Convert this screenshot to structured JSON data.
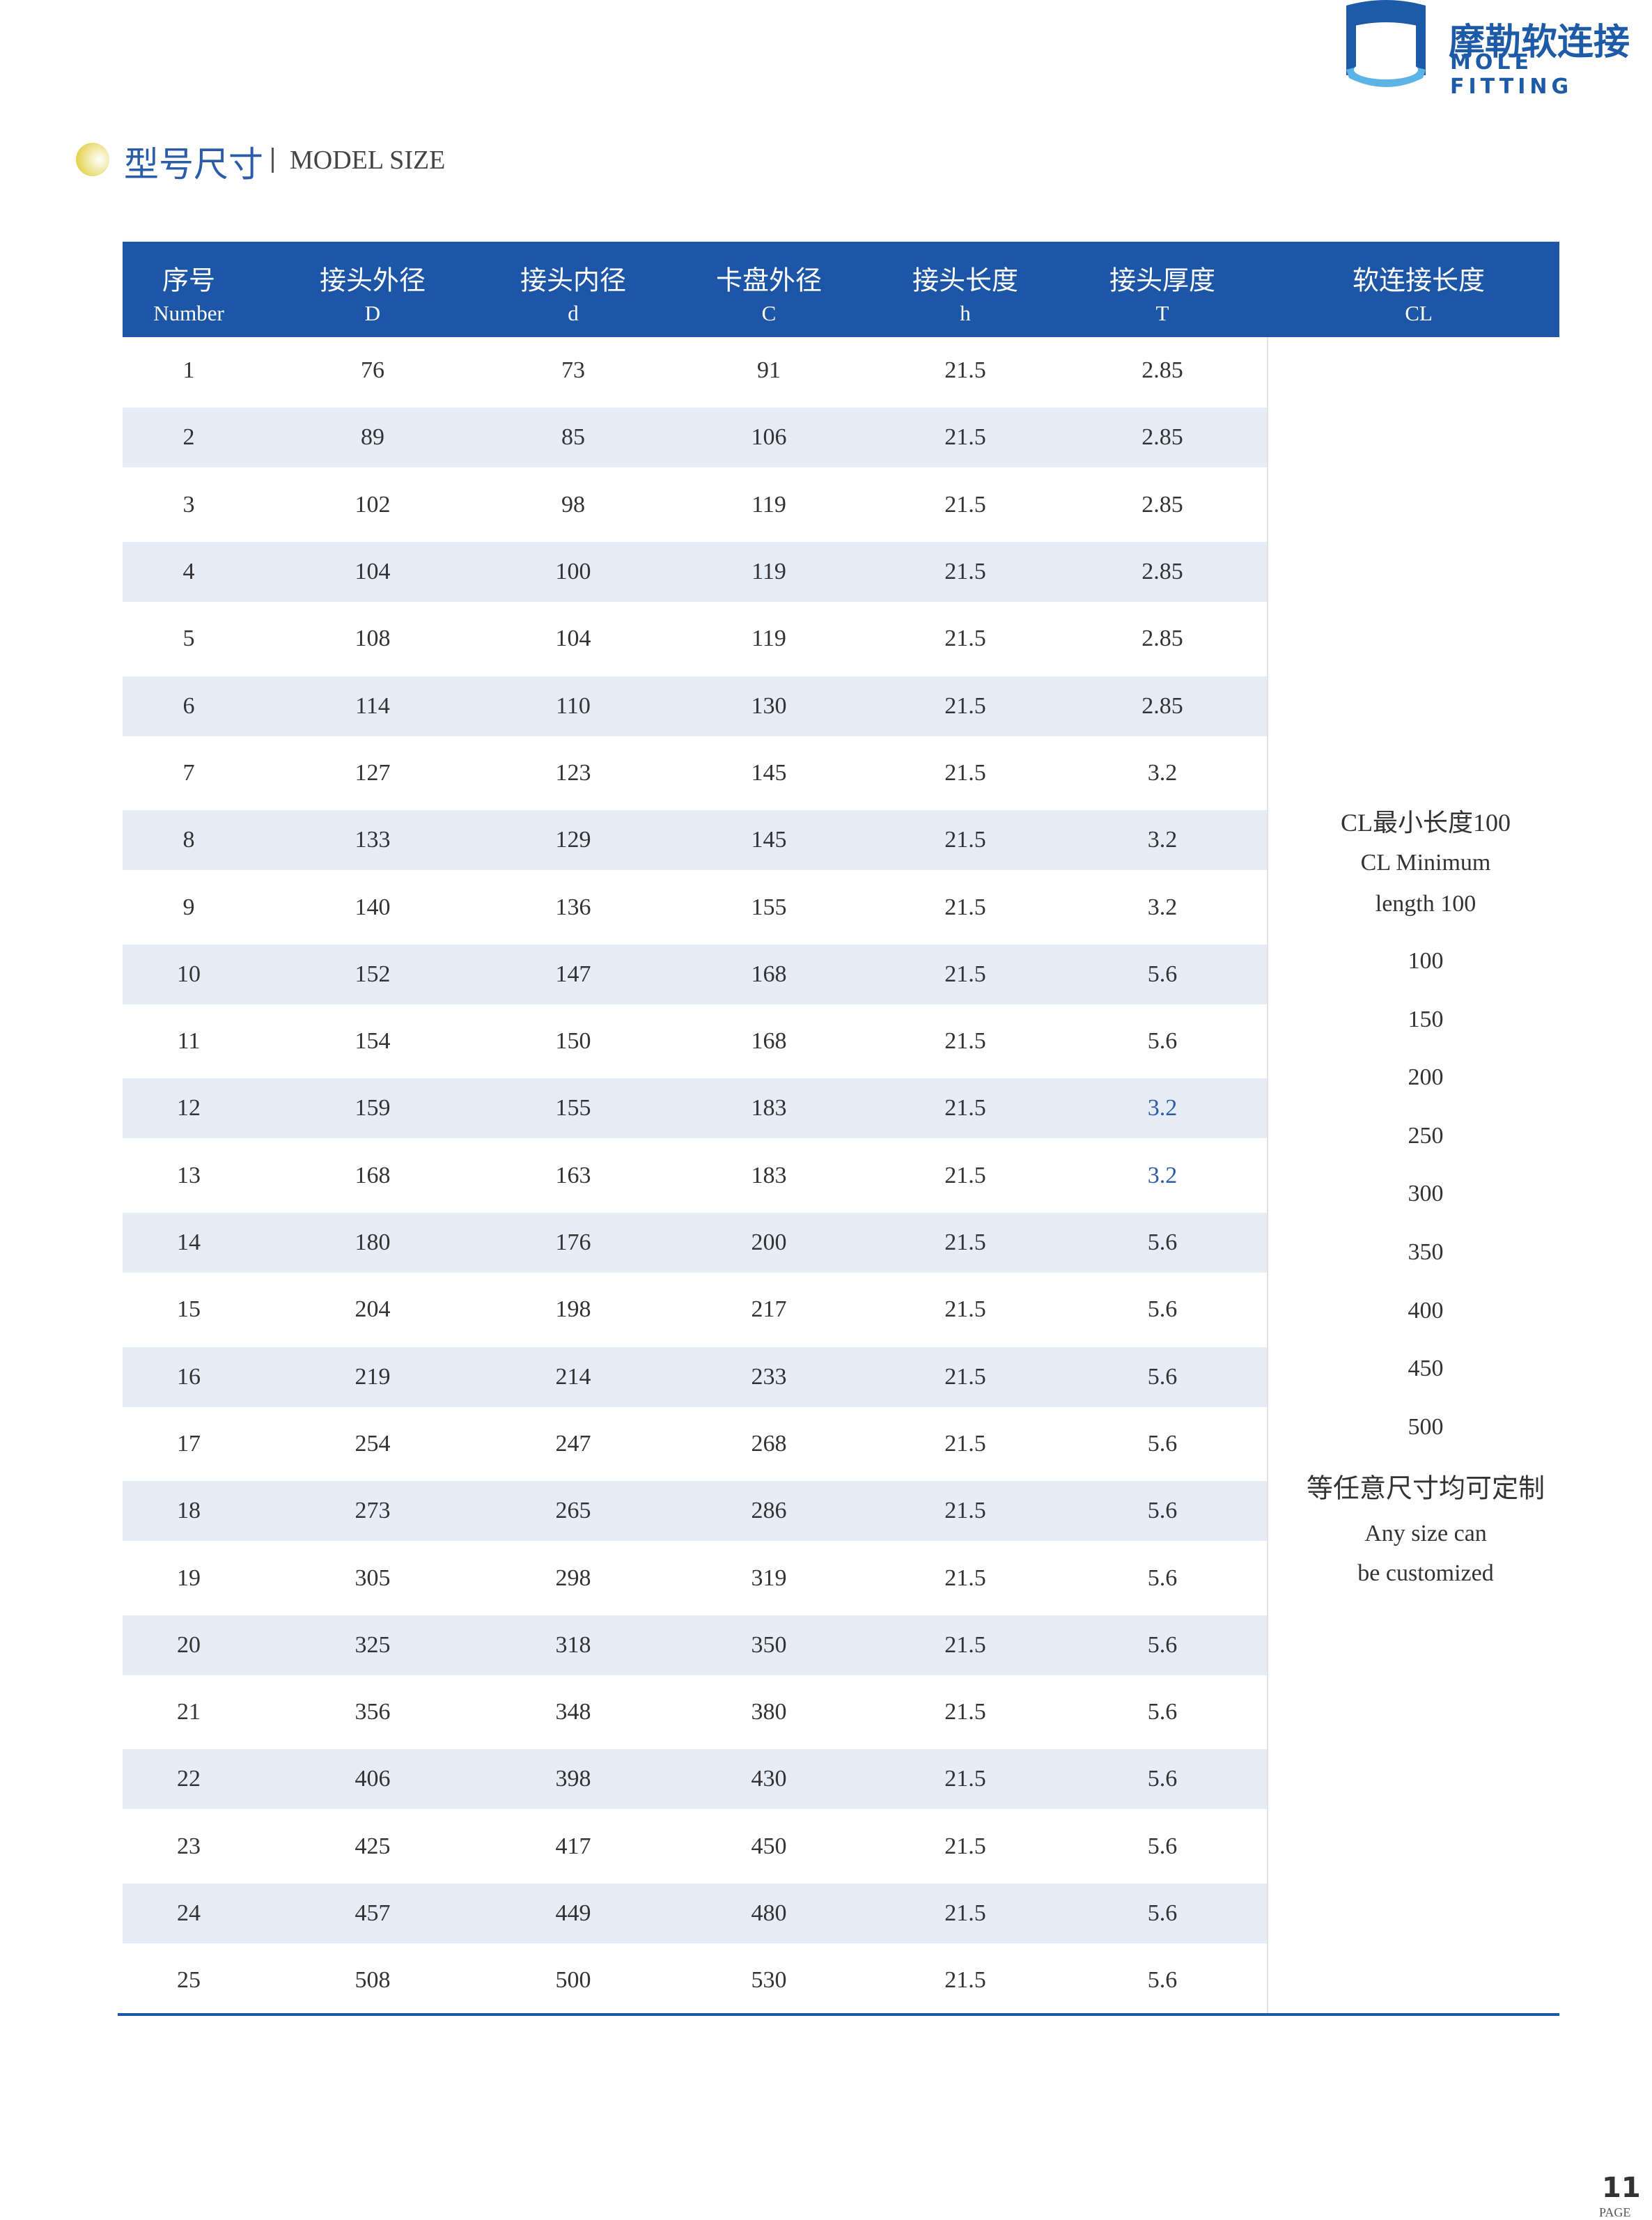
{
  "header": {
    "brand_cn": "摩勒软连接",
    "brand_en": "MOLE FITTING"
  },
  "section": {
    "title_cn": "型号尺寸",
    "title_en": "MODEL SIZE"
  },
  "table": {
    "columns": [
      {
        "name": "序号",
        "sub": "Number"
      },
      {
        "name": "接头外径",
        "sub": "D"
      },
      {
        "name": "接头内径",
        "sub": "d"
      },
      {
        "name": "卡盘外径",
        "sub": "C"
      },
      {
        "name": "接头长度",
        "sub": "h"
      },
      {
        "name": "接头厚度",
        "sub": "T"
      },
      {
        "name": "软连接长度",
        "sub": "CL"
      }
    ],
    "rows": [
      [
        "1",
        "76",
        "73",
        "91",
        "21.5",
        "2.85"
      ],
      [
        "2",
        "89",
        "85",
        "106",
        "21.5",
        "2.85"
      ],
      [
        "3",
        "102",
        "98",
        "119",
        "21.5",
        "2.85"
      ],
      [
        "4",
        "104",
        "100",
        "119",
        "21.5",
        "2.85"
      ],
      [
        "5",
        "108",
        "104",
        "119",
        "21.5",
        "2.85"
      ],
      [
        "6",
        "114",
        "110",
        "130",
        "21.5",
        "2.85"
      ],
      [
        "7",
        "127",
        "123",
        "145",
        "21.5",
        "3.2"
      ],
      [
        "8",
        "133",
        "129",
        "145",
        "21.5",
        "3.2"
      ],
      [
        "9",
        "140",
        "136",
        "155",
        "21.5",
        "3.2"
      ],
      [
        "10",
        "152",
        "147",
        "168",
        "21.5",
        "5.6"
      ],
      [
        "11",
        "154",
        "150",
        "168",
        "21.5",
        "5.6"
      ],
      [
        "12",
        "159",
        "155",
        "183",
        "21.5",
        "3.2"
      ],
      [
        "13",
        "168",
        "163",
        "183",
        "21.5",
        "3.2"
      ],
      [
        "14",
        "180",
        "176",
        "200",
        "21.5",
        "5.6"
      ],
      [
        "15",
        "204",
        "198",
        "217",
        "21.5",
        "5.6"
      ],
      [
        "16",
        "219",
        "214",
        "233",
        "21.5",
        "5.6"
      ],
      [
        "17",
        "254",
        "247",
        "268",
        "21.5",
        "5.6"
      ],
      [
        "18",
        "273",
        "265",
        "286",
        "21.5",
        "5.6"
      ],
      [
        "19",
        "305",
        "298",
        "319",
        "21.5",
        "5.6"
      ],
      [
        "20",
        "325",
        "318",
        "350",
        "21.5",
        "5.6"
      ],
      [
        "21",
        "356",
        "348",
        "380",
        "21.5",
        "5.6"
      ],
      [
        "22",
        "406",
        "398",
        "430",
        "21.5",
        "5.6"
      ],
      [
        "23",
        "425",
        "417",
        "450",
        "21.5",
        "5.6"
      ],
      [
        "24",
        "457",
        "449",
        "480",
        "21.5",
        "5.6"
      ],
      [
        "25",
        "508",
        "500",
        "530",
        "21.5",
        "5.6"
      ]
    ],
    "cl_note": {
      "minimum": [
        "CL最小长度100",
        "CL Minimum",
        "length 100"
      ],
      "lengths": [
        "100",
        "150",
        "200",
        "250",
        "300",
        "350",
        "400",
        "450",
        "500"
      ],
      "custom": [
        "等任意尺寸均可定制",
        "Any size can",
        "be customized"
      ]
    }
  },
  "footer": {
    "page": "11",
    "label": "PAGE"
  }
}
